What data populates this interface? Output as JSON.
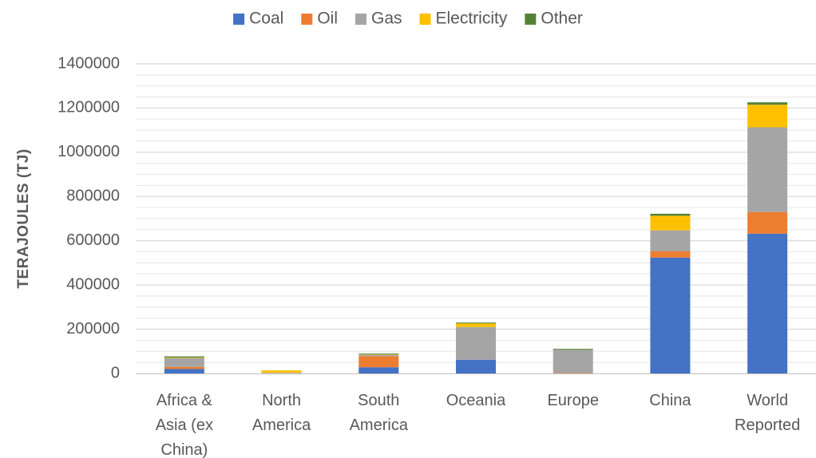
{
  "chart_data": {
    "type": "bar",
    "stacked": true,
    "ylabel": "TERAJOULES (TJ)",
    "ylim": [
      0,
      1400000
    ],
    "yticks": [
      "0",
      "200000",
      "400000",
      "600000",
      "800000",
      "1000000",
      "1200000",
      "1400000"
    ],
    "grid": true,
    "legend": "top",
    "categories": [
      [
        "Africa &",
        "Asia (ex",
        "China)"
      ],
      [
        "North",
        "America"
      ],
      [
        "South",
        "America"
      ],
      [
        "Oceania"
      ],
      [
        "Europe"
      ],
      [
        "China"
      ],
      [
        "World",
        "Reported"
      ]
    ],
    "series": [
      {
        "name": "Coal",
        "color": "#4472C4",
        "values": [
          20000,
          0,
          28000,
          62000,
          0,
          524000,
          632000
        ]
      },
      {
        "name": "Oil",
        "color": "#ED7D31",
        "values": [
          10000,
          1000,
          50000,
          0,
          2000,
          28000,
          98000
        ]
      },
      {
        "name": "Gas",
        "color": "#A5A5A5",
        "values": [
          40000,
          2000,
          7000,
          148000,
          105000,
          95000,
          383000
        ]
      },
      {
        "name": "Electricity",
        "color": "#FFC000",
        "values": [
          2000,
          11000,
          2000,
          16000,
          0,
          66000,
          102000
        ]
      },
      {
        "name": "Other",
        "color": "#548235",
        "values": [
          5000,
          0,
          3000,
          4000,
          4000,
          9000,
          11000
        ]
      }
    ]
  }
}
